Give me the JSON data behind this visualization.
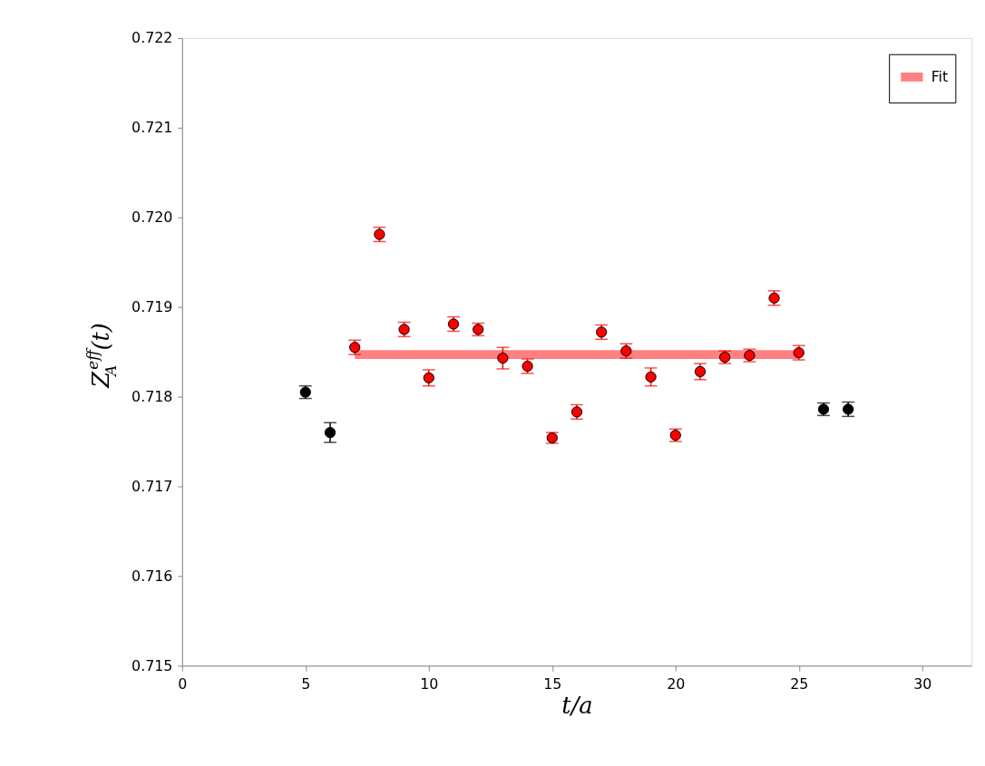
{
  "chart_data": {
    "type": "scatter",
    "xlabel": "t/a",
    "ylabel": "Z$_{A}$$^{eff}$(t)",
    "xlim": [
      0,
      32
    ],
    "xticks": [
      0,
      5,
      10,
      15,
      20,
      25,
      30
    ],
    "ylim": [
      0.715,
      0.722
    ],
    "yticks": [
      0.715,
      0.716,
      0.717,
      0.718,
      0.719,
      {
        "value": 0.72,
        "label": "0.720"
      },
      0.721,
      0.722
    ],
    "grid": false,
    "legend": "top right",
    "series": [
      {
        "marker": "circle",
        "color": "#000000",
        "x": [
          5,
          6,
          26,
          27
        ],
        "values": [
          0.71805,
          0.7176,
          0.71786,
          0.71786
        ],
        "errors": [
          7e-05,
          0.00011,
          7e-05,
          8e-05
        ]
      },
      {
        "marker": "circle",
        "color": "#ff0000",
        "x": [
          7,
          8,
          9,
          10,
          11,
          12,
          13,
          14,
          15,
          16,
          17,
          18,
          19,
          20,
          21,
          22,
          23,
          24,
          25
        ],
        "values": [
          0.71855,
          0.71981,
          0.71875,
          0.71821,
          0.71881,
          0.71875,
          0.71843,
          0.71834,
          0.71754,
          0.71783,
          0.71872,
          0.71851,
          0.71822,
          0.71757,
          0.71828,
          0.71844,
          0.71846,
          0.7191,
          0.71849
        ],
        "errors": [
          8e-05,
          8e-05,
          8e-05,
          9e-05,
          8e-05,
          7e-05,
          0.00012,
          8e-05,
          6e-05,
          8e-05,
          8e-05,
          8e-05,
          0.0001,
          7e-05,
          9e-05,
          7e-05,
          7e-05,
          8e-05,
          8e-05
        ]
      },
      {
        "type": "line",
        "marker": "none",
        "name": "Fit",
        "color": "#ff8080",
        "x": [
          7,
          25
        ],
        "values": [
          0.71847,
          0.71847
        ]
      }
    ]
  }
}
